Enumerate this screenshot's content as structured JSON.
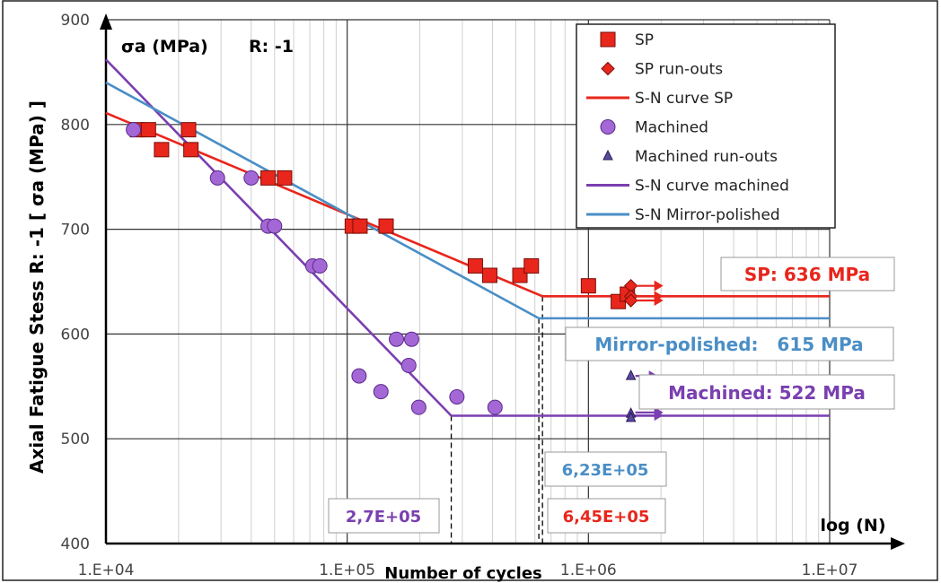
{
  "chart_data": {
    "type": "scatter",
    "x_scale": "log",
    "xlim": [
      10000,
      10000000
    ],
    "ylim": [
      400,
      900
    ],
    "x_tick_labels": [
      "1.E+04",
      "1.E+05",
      "1.E+06",
      "1.E+07"
    ],
    "y_tick_labels": [
      "400",
      "500",
      "600",
      "700",
      "800",
      "900"
    ],
    "xlabel": "Number of cycles",
    "xlabel_axis_end": "log (N)",
    "ylabel": "Axial Fatigue Stess R: -1  [ σa (MPa) ]",
    "ylabel_top": "σa (MPa)",
    "ratio_label": "R: -1",
    "grid": true,
    "legend_position": "top-right",
    "colors": {
      "sp": "#e8261c",
      "machined": "#7a3fb0",
      "mirror": "#4a8ec6",
      "marker_fill_sp": "#e8261c",
      "marker_fill_machined": "#a468d6"
    },
    "series": [
      {
        "name": "SP",
        "kind": "square",
        "points": [
          [
            13500,
            795
          ],
          [
            15000,
            795
          ],
          [
            17000,
            776
          ],
          [
            22000,
            795
          ],
          [
            22500,
            776
          ],
          [
            47000,
            749
          ],
          [
            55000,
            749
          ],
          [
            105000,
            703
          ],
          [
            113000,
            703
          ],
          [
            145000,
            703
          ],
          [
            340000,
            665
          ],
          [
            390000,
            656
          ],
          [
            520000,
            656
          ],
          [
            580000,
            665
          ],
          [
            1000000,
            646
          ],
          [
            1330000,
            631
          ],
          [
            1450000,
            638
          ]
        ]
      },
      {
        "name": "SP run-outs",
        "kind": "diamond",
        "points": [
          [
            1500000,
            646
          ],
          [
            1500000,
            636
          ],
          [
            1500000,
            632
          ]
        ]
      },
      {
        "name": "S-N curve SP",
        "kind": "line",
        "points": [
          [
            10000,
            811
          ],
          [
            645000,
            636
          ],
          [
            10000000,
            636
          ]
        ]
      },
      {
        "name": "Machined",
        "kind": "circle",
        "points": [
          [
            13000,
            795
          ],
          [
            29000,
            749
          ],
          [
            40000,
            749
          ],
          [
            47000,
            703
          ],
          [
            50000,
            703
          ],
          [
            72000,
            665
          ],
          [
            77000,
            665
          ],
          [
            112000,
            560
          ],
          [
            138000,
            545
          ],
          [
            160000,
            595
          ],
          [
            180000,
            570
          ],
          [
            185000,
            595
          ],
          [
            198000,
            530
          ],
          [
            285000,
            540
          ],
          [
            410000,
            530
          ]
        ]
      },
      {
        "name": "Machined run-outs",
        "kind": "triangle",
        "points": [
          [
            1500000,
            560
          ],
          [
            1500000,
            524
          ],
          [
            1500000,
            520
          ]
        ]
      },
      {
        "name": "S-N curve machined",
        "kind": "line",
        "points": [
          [
            10000,
            862
          ],
          [
            270000,
            522
          ],
          [
            10000000,
            522
          ]
        ]
      },
      {
        "name": "S-N Mirror-polished",
        "kind": "line",
        "points": [
          [
            10000,
            840
          ],
          [
            623000,
            615
          ],
          [
            10000000,
            615
          ]
        ]
      }
    ],
    "annotations": [
      {
        "text": "SP: 636 MPa",
        "color": "#e8261c"
      },
      {
        "text": "Mirror-polished:   615 MPa",
        "color": "#4a8ec6"
      },
      {
        "text": "Machined: 522 MPa",
        "color": "#7a3fb0"
      },
      {
        "text": "6,23E+05",
        "color": "#4a8ec6",
        "x": 623000
      },
      {
        "text": "2,7E+05",
        "color": "#7a3fb0",
        "x": 270000
      },
      {
        "text": "6,45E+05",
        "color": "#e8261c",
        "x": 645000
      }
    ]
  }
}
